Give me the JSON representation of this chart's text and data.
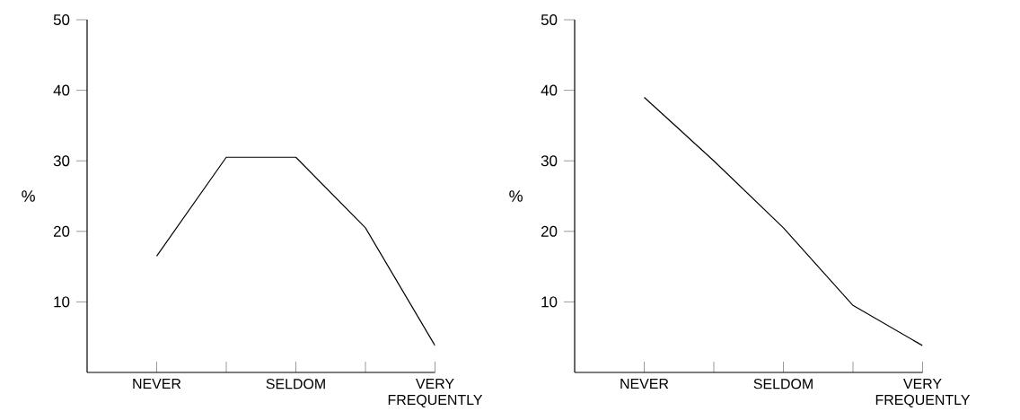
{
  "chart_data": [
    {
      "type": "line",
      "categories": [
        "NEVER",
        null,
        "SELDOM",
        null,
        "VERY FREQUENTLY"
      ],
      "values": [
        16.5,
        30.5,
        30.5,
        20.5,
        3.8
      ],
      "color": "#000000",
      "ylabel": "%",
      "ylim": [
        0,
        50
      ],
      "yticks": [
        10,
        20,
        30,
        40,
        50
      ]
    },
    {
      "type": "line",
      "categories": [
        "NEVER",
        null,
        "SELDOM",
        null,
        "VERY FREQUENTLY"
      ],
      "values": [
        39,
        30,
        20.5,
        9.5,
        3.8
      ],
      "color": "#000000",
      "ylabel": "%",
      "ylim": [
        0,
        50
      ],
      "yticks": [
        10,
        20,
        30,
        40,
        50
      ]
    }
  ]
}
